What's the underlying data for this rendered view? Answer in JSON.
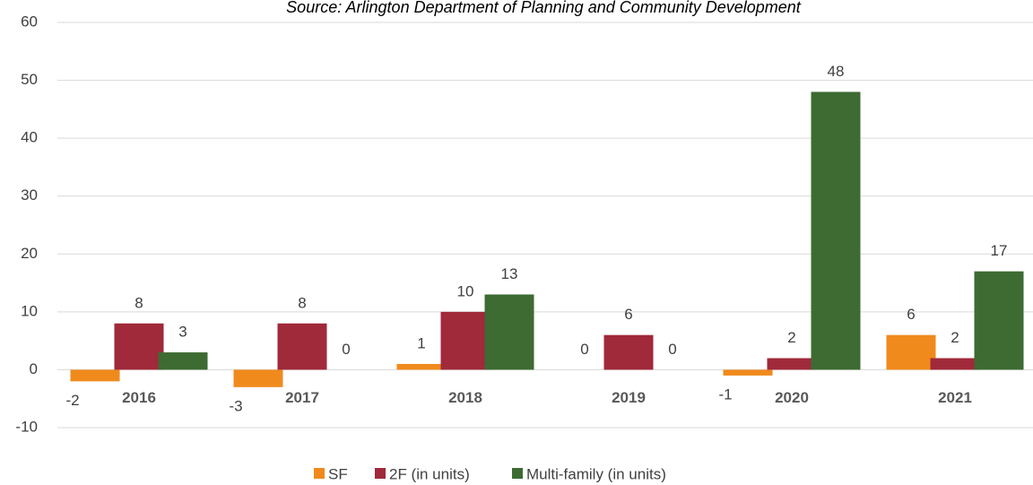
{
  "chart_data": {
    "type": "bar",
    "subtitle": "Source: Arlington Department of Planning and Community Development",
    "categories": [
      "2016",
      "2017",
      "2018",
      "2019",
      "2020",
      "2021"
    ],
    "series": [
      {
        "name": "SF",
        "color": "#f08a1c",
        "values": [
          -2,
          -3,
          1,
          0,
          -1,
          6
        ]
      },
      {
        "name": "2F (in units)",
        "color": "#a0293a",
        "values": [
          8,
          8,
          10,
          6,
          2,
          2
        ]
      },
      {
        "name": "Multi-family (in units)",
        "color": "#3d6b32",
        "values": [
          3,
          0,
          13,
          0,
          48,
          17
        ]
      }
    ],
    "ylim": [
      -10,
      60
    ],
    "yticks": [
      -10,
      0,
      10,
      20,
      30,
      40,
      50,
      60
    ],
    "grid": true,
    "legend": "bottom"
  }
}
